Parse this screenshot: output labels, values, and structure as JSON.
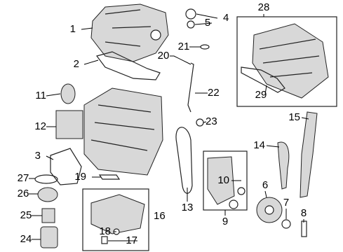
{
  "callouts": [
    "1",
    "2",
    "3",
    "4",
    "5",
    "6",
    "7",
    "8",
    "9",
    "10",
    "11",
    "12",
    "13",
    "14",
    "15",
    "16",
    "17",
    "18",
    "19",
    "20",
    "21",
    "22",
    "23",
    "24",
    "25",
    "26",
    "27",
    "28",
    "29"
  ]
}
